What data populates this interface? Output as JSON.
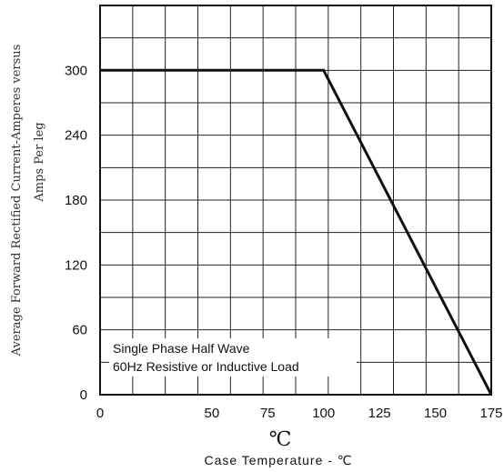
{
  "chart_data": {
    "type": "line",
    "xlabel_unit": "℃",
    "xlabel": "Case Temperature  - ℃",
    "ylabel_line1": "Average Forward Rectified Current-Amperes versus",
    "ylabel_line2": "Amps  Per leg",
    "xlim": [
      0,
      175
    ],
    "ylim": [
      0,
      360
    ],
    "xticks": [
      0,
      50,
      75,
      100,
      125,
      150,
      175
    ],
    "yticks": [
      0,
      60,
      120,
      180,
      240,
      300
    ],
    "grid": true,
    "series": [
      {
        "x": [
          0,
          100,
          175
        ],
        "y": [
          300,
          300,
          0
        ]
      }
    ],
    "annotation": {
      "line1": "Single  Phase  Half  Wave",
      "line2": "60Hz  Resistive   or Inductive Load"
    }
  }
}
